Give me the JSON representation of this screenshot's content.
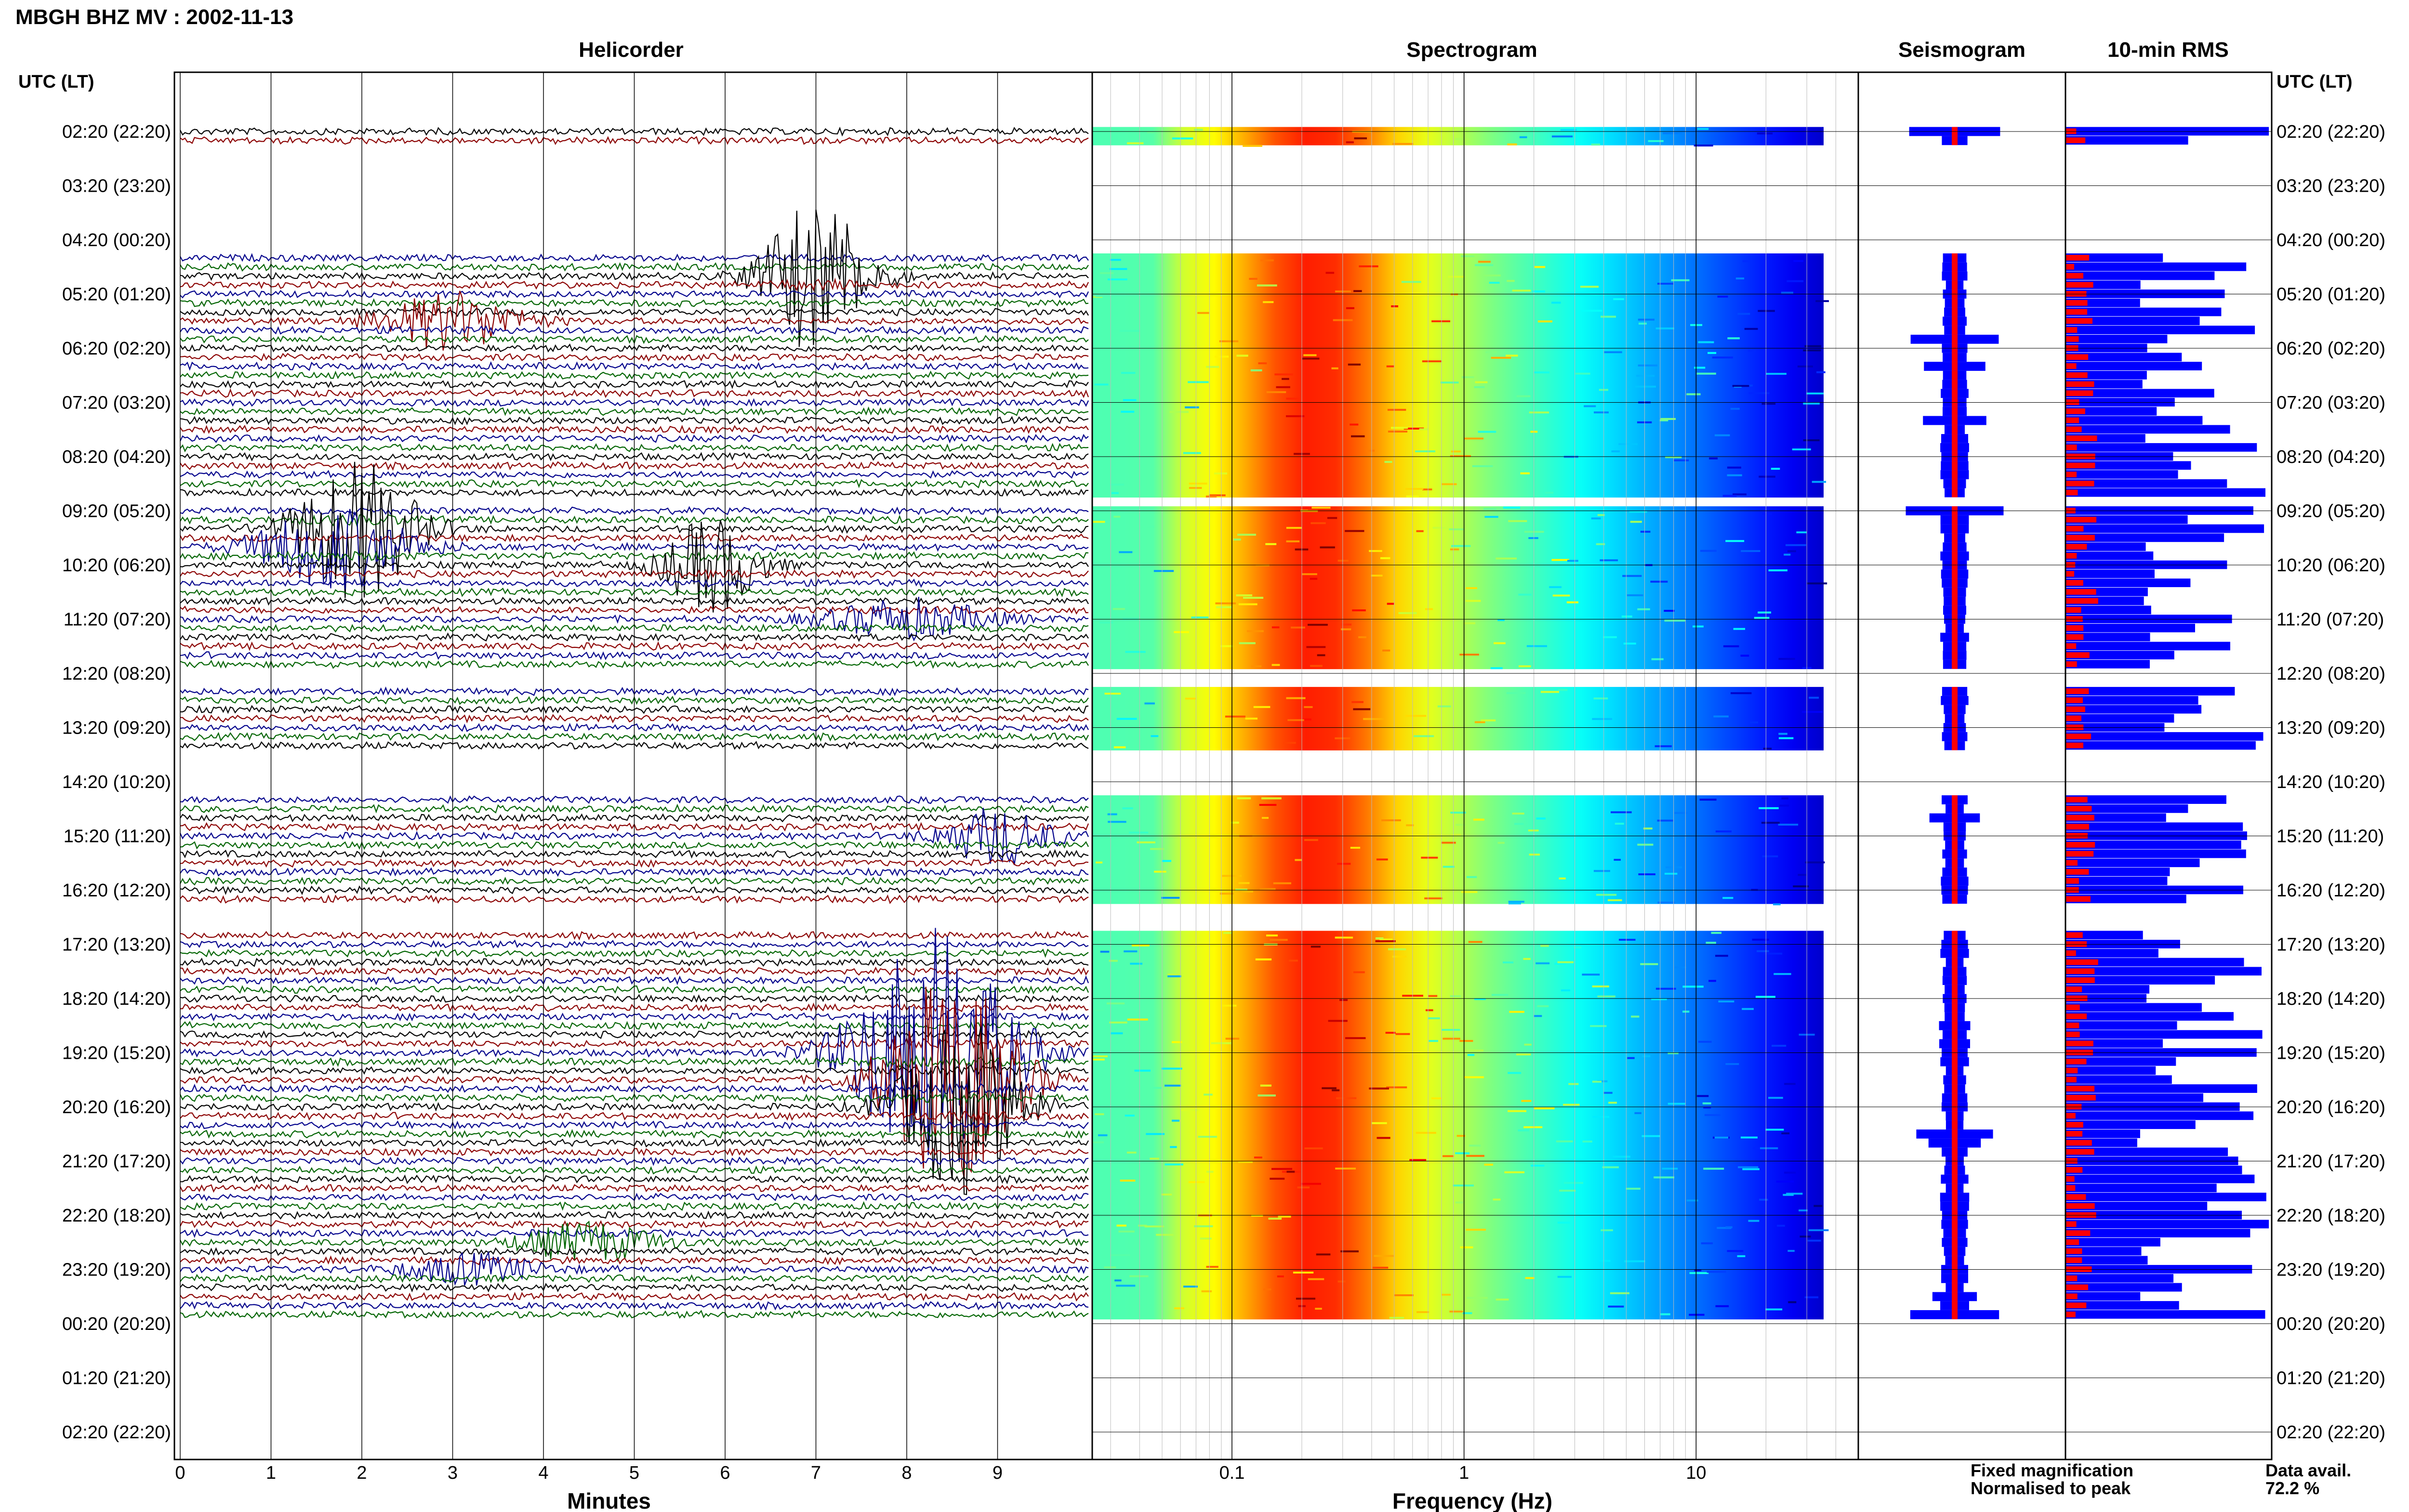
{
  "header": {
    "title": "MBGH BHZ MV : 2002-11-13"
  },
  "panels": {
    "helicorder": "Helicorder",
    "spectrogram": "Spectrogram",
    "seismogram": "Seismogram",
    "rms": "10-min RMS"
  },
  "axes": {
    "left_time_header": "UTC (LT)",
    "right_time_header": "UTC (LT)",
    "helicorder_xlabel": "Minutes",
    "spectrogram_xlabel": "Frequency (Hz)"
  },
  "legend": {
    "fixed": "Fixed magnification",
    "normalised": "Normalised to peak",
    "fixed_color": "#0000ff",
    "normalised_color": "#ff0000"
  },
  "data_availability": {
    "label": "Data avail.",
    "value": "72.2 %"
  },
  "colors": {
    "trace_black": "#000000",
    "trace_red": "#8b0000",
    "trace_blue": "#00008b",
    "trace_green": "#006400",
    "rms_blue": "#0000ff",
    "rms_red": "#ff0000"
  },
  "chart_data": {
    "type": "heatmap",
    "title": "MBGH BHZ MV : 2002-11-13",
    "time_labels": [
      "02:20 (22:20)",
      "03:20 (23:20)",
      "04:20 (00:20)",
      "05:20 (01:20)",
      "06:20 (02:20)",
      "07:20 (03:20)",
      "08:20 (04:20)",
      "09:20 (05:20)",
      "10:20 (06:20)",
      "11:20 (07:20)",
      "12:20 (08:20)",
      "13:20 (09:20)",
      "14:20 (10:20)",
      "15:20 (11:20)",
      "16:20 (12:20)",
      "17:20 (13:20)",
      "18:20 (14:20)",
      "19:20 (15:20)",
      "20:20 (16:20)",
      "21:20 (17:20)",
      "22:20 (18:20)",
      "23:20 (19:20)",
      "00:20 (20:20)",
      "01:20 (21:20)",
      "02:20 (22:20)"
    ],
    "helicorder": {
      "xlabel": "Minutes",
      "xlim": [
        0,
        10
      ],
      "xticks": [
        0,
        1,
        2,
        3,
        4,
        5,
        6,
        7,
        8,
        9
      ],
      "rows_per_hour": 6,
      "data_segments_hours": [
        [
          0,
          0.17
        ],
        [
          2.33,
          2.67
        ],
        [
          2.67,
          6.67
        ],
        [
          7,
          10
        ],
        [
          10.33,
          11.5
        ],
        [
          12.33,
          14.33
        ],
        [
          14.67,
          22
        ]
      ]
    },
    "spectrogram": {
      "xlabel": "Frequency (Hz)",
      "xscale": "log",
      "xlim": [
        0.025,
        50
      ],
      "xticklabels": [
        "0.1",
        "1",
        "10"
      ]
    },
    "data_availability_percent": 72.2
  }
}
